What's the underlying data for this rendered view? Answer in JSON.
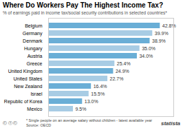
{
  "chart_data": {
    "type": "bar",
    "orientation": "horizontal",
    "title": "Where Do Workers Pay The Highest Income Tax?",
    "subtitle": "% of earnings paid in income tax/social security contributions in selected countries*",
    "categories": [
      "Belgium",
      "Germany",
      "Denmark",
      "Hungary",
      "Austria",
      "Greece",
      "United Kingdom",
      "United States",
      "New Zealand",
      "Israel",
      "Republic of Korea",
      "Mexico"
    ],
    "values": [
      42.8,
      39.9,
      38.9,
      35.0,
      34.0,
      25.4,
      24.9,
      22.7,
      16.4,
      15.5,
      13.0,
      9.5
    ],
    "value_labels": [
      "42.8%",
      "39.9%",
      "38.9%",
      "35.0%",
      "34.0%",
      "25.4%",
      "24.9%",
      "22.7%",
      "16.4%",
      "15.5%",
      "13.0%",
      "9.5%"
    ],
    "colors": [
      "#6aaed6",
      "#a8cce4",
      "#6aaed6",
      "#a8cce4",
      "#6aaed6",
      "#a8cce4",
      "#6aaed6",
      "#a8cce4",
      "#6aaed6",
      "#a8cce4",
      "#6aaed6",
      "#a8cce4"
    ],
    "xlim": [
      0,
      48
    ],
    "xticks": [],
    "tick_labels": "y",
    "grid": false,
    "data_labels": true,
    "annotations": [
      "Ⓒ  ⓕ  Ⓒ",
      "* Single people on an average salary without children - latest available year",
      "Source: OECD",
      "statista"
    ]
  }
}
